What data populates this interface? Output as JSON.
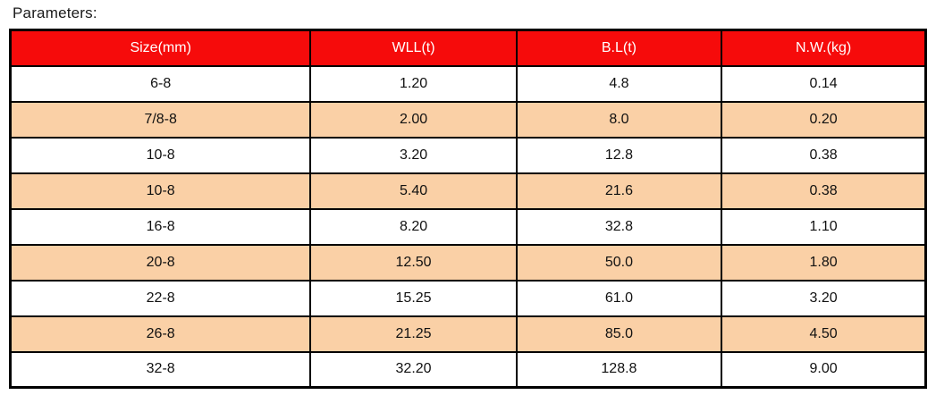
{
  "page_title": "Parameters:",
  "chart_data": {
    "type": "table",
    "title": "Parameters:",
    "columns": [
      "Size(mm)",
      "WLL(t)",
      "B.L(t)",
      "N.W.(kg)"
    ],
    "rows": [
      [
        "6-8",
        "1.20",
        "4.8",
        "0.14"
      ],
      [
        "7/8-8",
        "2.00",
        "8.0",
        "0.20"
      ],
      [
        "10-8",
        "3.20",
        "12.8",
        "0.38"
      ],
      [
        "10-8",
        "5.40",
        "21.6",
        "0.38"
      ],
      [
        "16-8",
        "8.20",
        "32.8",
        "1.10"
      ],
      [
        "20-8",
        "12.50",
        "50.0",
        "1.80"
      ],
      [
        "22-8",
        "15.25",
        "61.0",
        "3.20"
      ],
      [
        "26-8",
        "21.25",
        "85.0",
        "4.50"
      ],
      [
        "32-8",
        "32.20",
        "128.8",
        "9.00"
      ]
    ],
    "layout": {
      "alternating_rows": true,
      "alt_row_indices": [
        1,
        3,
        5,
        7
      ],
      "text_align": "center"
    }
  },
  "colors": {
    "header_bg": "#f60b0b",
    "header_text": "#ffffff",
    "row_bg": "#ffffff",
    "row_alt_bg": "#fad0a6",
    "border": "#000000",
    "page_bg": "#ffffff"
  }
}
